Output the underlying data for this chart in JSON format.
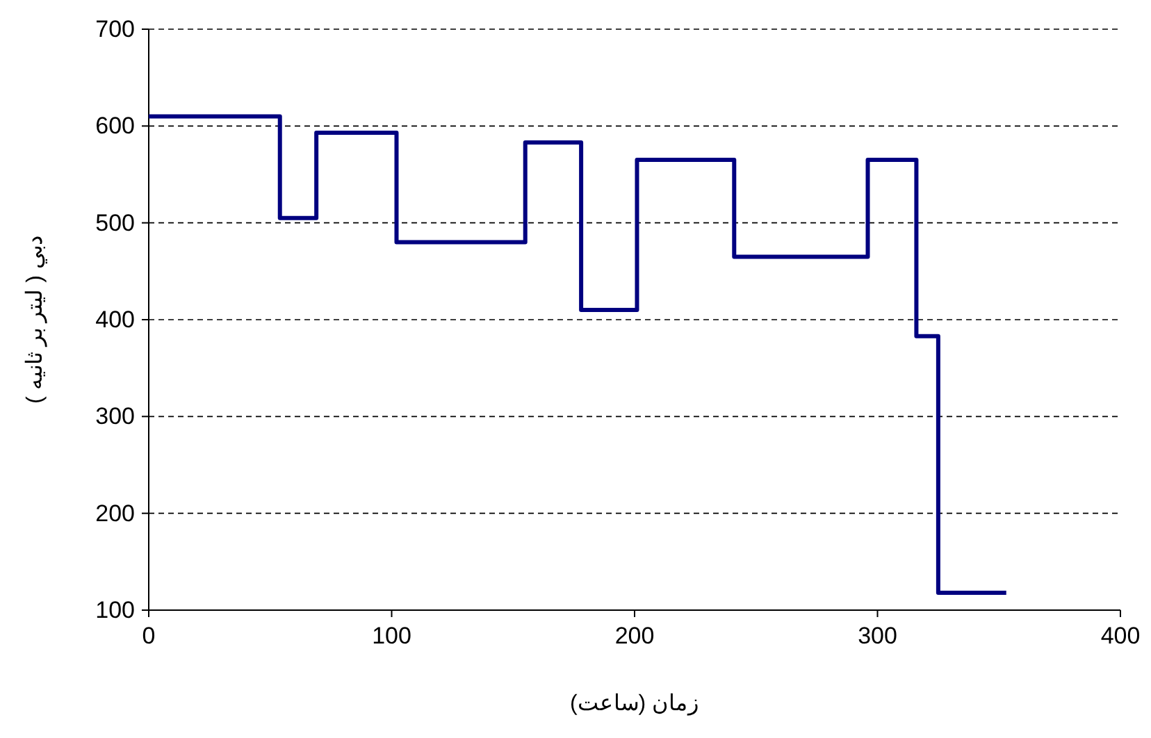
{
  "chart_data": {
    "type": "step",
    "xlabel": "زمان (ساعت)",
    "ylabel": "دبي ( ليتر بر ثانيه )",
    "x": [
      0,
      54,
      69,
      102,
      155,
      178,
      201,
      241,
      296,
      316,
      325,
      353
    ],
    "series": [
      {
        "color": "#000080",
        "values": [
          610,
          505,
          593,
          480,
          583,
          410,
          565,
          465,
          565,
          383,
          118,
          118
        ]
      }
    ],
    "xlim": [
      0,
      400
    ],
    "xticks": [
      0,
      100,
      200,
      300,
      400
    ],
    "ylim": [
      100,
      700
    ],
    "yticks": [
      100,
      200,
      300,
      400,
      500,
      600,
      700
    ],
    "grid": "y",
    "marker": "none",
    "line_style": "solid"
  }
}
